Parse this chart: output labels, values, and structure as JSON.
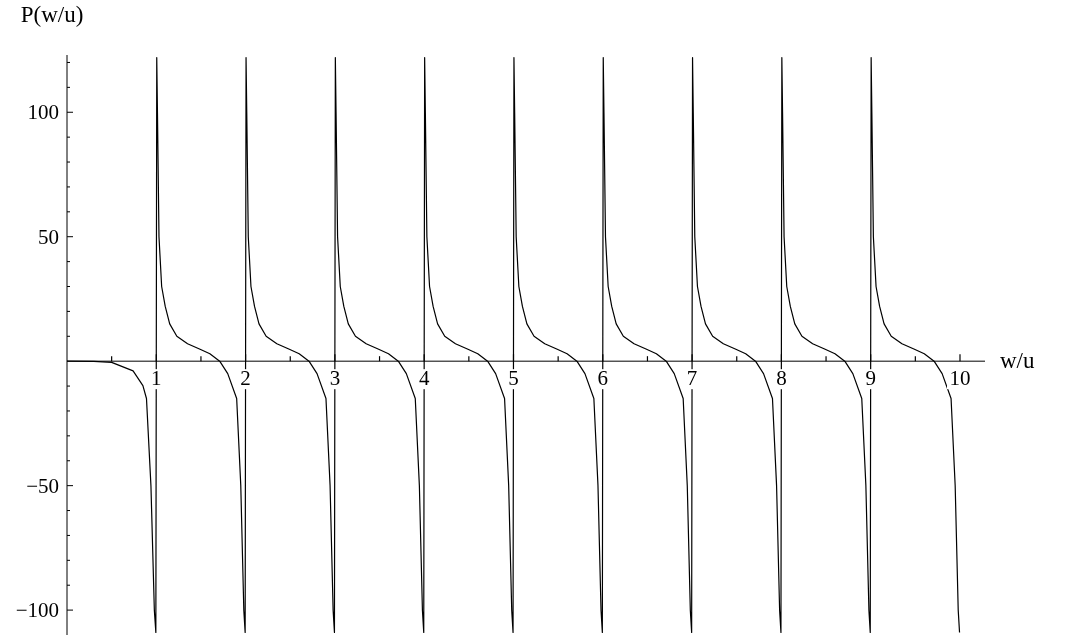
{
  "chart_data": {
    "type": "line",
    "xlabel": "w/u",
    "ylabel": "P(w/u)",
    "color": "#000000",
    "x": [
      0,
      0.3,
      0.5,
      0.74,
      0.85,
      0.89,
      0.94,
      0.978,
      0.995,
      1.005,
      1.013,
      1.03,
      1.06,
      1.1,
      1.15,
      1.23,
      1.35,
      1.49,
      1.6,
      1.71,
      1.8,
      1.9,
      1.946,
      1.98,
      1.995,
      2.005,
      2.013,
      2.03,
      2.06,
      2.1,
      2.15,
      2.23,
      2.35,
      2.49,
      2.6,
      2.71,
      2.8,
      2.9,
      2.946,
      2.98,
      2.995,
      3.005,
      3.013,
      3.03,
      3.06,
      3.1,
      3.15,
      3.23,
      3.35,
      3.49,
      3.6,
      3.71,
      3.8,
      3.9,
      3.946,
      3.98,
      3.995,
      4.005,
      4.013,
      4.03,
      4.06,
      4.1,
      4.15,
      4.23,
      4.35,
      4.49,
      4.6,
      4.71,
      4.8,
      4.9,
      4.946,
      4.98,
      4.995,
      5.005,
      5.013,
      5.03,
      5.06,
      5.1,
      5.15,
      5.23,
      5.35,
      5.49,
      5.6,
      5.71,
      5.8,
      5.9,
      5.946,
      5.98,
      5.995,
      6.005,
      6.013,
      6.03,
      6.06,
      6.1,
      6.15,
      6.23,
      6.35,
      6.49,
      6.6,
      6.71,
      6.8,
      6.9,
      6.946,
      6.98,
      6.995,
      7.005,
      7.013,
      7.03,
      7.06,
      7.1,
      7.15,
      7.23,
      7.35,
      7.49,
      7.6,
      7.71,
      7.8,
      7.9,
      7.946,
      7.98,
      7.995,
      8.005,
      8.013,
      8.03,
      8.06,
      8.1,
      8.15,
      8.23,
      8.35,
      8.49,
      8.6,
      8.71,
      8.8,
      8.9,
      8.946,
      8.98,
      8.995,
      9.005,
      9.013,
      9.03,
      9.06,
      9.1,
      9.15,
      9.23,
      9.35,
      9.49,
      9.6,
      9.71,
      9.8,
      9.9,
      9.946,
      9.98,
      9.995
    ],
    "values": [
      0,
      -0.1,
      -0.5,
      -3.9,
      -9.8,
      -15,
      -50,
      -100,
      -109,
      122,
      100,
      50,
      30,
      22,
      15,
      10,
      7,
      4.8,
      3,
      0,
      -5,
      -15,
      -50,
      -100,
      -109,
      122,
      100,
      50,
      30,
      22,
      15,
      10,
      7,
      4.8,
      3,
      0,
      -5,
      -15,
      -50,
      -100,
      -109,
      122,
      100,
      50,
      30,
      22,
      15,
      10,
      7,
      4.8,
      3,
      0,
      -5,
      -15,
      -50,
      -100,
      -109,
      122,
      100,
      50,
      30,
      22,
      15,
      10,
      7,
      4.8,
      3,
      0,
      -5,
      -15,
      -50,
      -100,
      -109,
      122,
      100,
      50,
      30,
      22,
      15,
      10,
      7,
      4.8,
      3,
      0,
      -5,
      -15,
      -50,
      -100,
      -109,
      122,
      100,
      50,
      30,
      22,
      15,
      10,
      7,
      4.8,
      3,
      0,
      -5,
      -15,
      -50,
      -100,
      -109,
      122,
      100,
      50,
      30,
      22,
      15,
      10,
      7,
      4.8,
      3,
      0,
      -5,
      -15,
      -50,
      -100,
      -109,
      122,
      100,
      50,
      30,
      22,
      15,
      10,
      7,
      4.8,
      3,
      0,
      -5,
      -15,
      -50,
      -100,
      -109,
      122,
      100,
      50,
      30,
      22,
      15,
      10,
      7,
      4.8,
      3,
      0,
      -5,
      -15,
      -50,
      -100,
      -109
    ],
    "xlim": [
      0,
      10.28
    ],
    "ylim": [
      -110,
      123
    ],
    "xticks": [
      {
        "value": 0.5,
        "label": null
      },
      1,
      {
        "value": 1.5,
        "label": null
      },
      2,
      {
        "value": 2.5,
        "label": null
      },
      3,
      {
        "value": 3.5,
        "label": null
      },
      4,
      {
        "value": 4.5,
        "label": null
      },
      5,
      {
        "value": 5.5,
        "label": null
      },
      6,
      {
        "value": 6.5,
        "label": null
      },
      7,
      {
        "value": 7.5,
        "label": null
      },
      8,
      {
        "value": 8.5,
        "label": null
      },
      9,
      {
        "value": 9.5,
        "label": null
      },
      10
    ],
    "yticks": [
      {
        "value": -100,
        "label": "−100"
      },
      {
        "value": -90,
        "label": null
      },
      {
        "value": -80,
        "label": null
      },
      {
        "value": -70,
        "label": null
      },
      {
        "value": -60,
        "label": null
      },
      {
        "value": -50,
        "label": "−50"
      },
      {
        "value": -40,
        "label": null
      },
      {
        "value": -30,
        "label": null
      },
      {
        "value": -20,
        "label": null
      },
      {
        "value": -10,
        "label": null
      },
      {
        "value": 10,
        "label": null
      },
      {
        "value": 20,
        "label": null
      },
      {
        "value": 30,
        "label": null
      },
      {
        "value": 40,
        "label": null
      },
      50,
      {
        "value": 60,
        "label": null
      },
      {
        "value": 70,
        "label": null
      },
      {
        "value": 80,
        "label": null
      },
      {
        "value": 90,
        "label": null
      },
      100,
      {
        "value": 110,
        "label": null
      },
      {
        "value": 120,
        "label": null
      }
    ]
  }
}
